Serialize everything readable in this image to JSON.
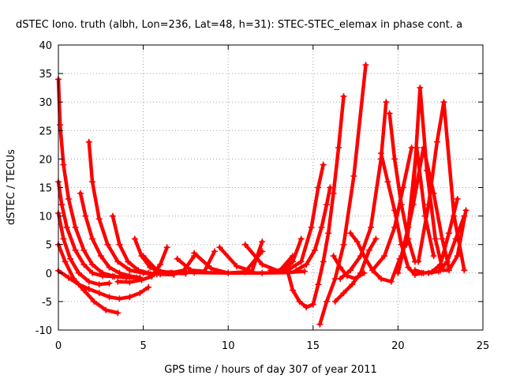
{
  "chart_data": {
    "type": "scatter",
    "title": "dSTEC Iono. truth (albh, Lon=236, Lat=48, h=31): STEC-STEC_elemax in phase cont. a",
    "xlabel": "GPS time / hours of day 307 of year 2011",
    "ylabel": "dSTEC  / TECUs",
    "xlim": [
      0,
      25
    ],
    "ylim": [
      -10,
      40
    ],
    "xticks": [
      "0",
      "5",
      "10",
      "15",
      "20",
      "25"
    ],
    "yticks": [
      "-10",
      "-5",
      "0",
      "5",
      "10",
      "15",
      "20",
      "25",
      "30",
      "35",
      "40"
    ],
    "grid": true,
    "marker": "+",
    "color": "#ff0000",
    "series": [
      {
        "x": [
          0.0,
          0.1,
          0.3,
          0.6,
          1.0,
          1.5,
          2.0,
          2.6,
          3.3,
          4.0,
          4.6
        ],
        "y": [
          34,
          26,
          19,
          13,
          8,
          4,
          1.5,
          0,
          -0.6,
          -0.8,
          -0.8
        ]
      },
      {
        "x": [
          0.0,
          0.2,
          0.5,
          1.0,
          1.5,
          2.0,
          2.6,
          3.2
        ],
        "y": [
          16,
          12,
          8,
          4,
          1.5,
          0,
          -0.5,
          -0.6
        ]
      },
      {
        "x": [
          0.0,
          0.3,
          0.7,
          1.2,
          1.8,
          2.4,
          3.0
        ],
        "y": [
          10.5,
          6,
          2.5,
          0,
          -1.5,
          -2,
          -1.8
        ]
      },
      {
        "x": [
          0.0,
          0.4,
          0.9,
          1.5,
          2.1,
          2.8,
          3.5
        ],
        "y": [
          5,
          2,
          -1,
          -3,
          -5,
          -6.5,
          -7
        ]
      },
      {
        "x": [
          0.0,
          0.6,
          1.2,
          1.8,
          2.4,
          3.0,
          3.6,
          4.2,
          4.8,
          5.3
        ],
        "y": [
          0.4,
          -0.8,
          -2,
          -2.8,
          -3.5,
          -4.2,
          -4.5,
          -4.2,
          -3.5,
          -2.5
        ]
      },
      {
        "x": [
          1.3,
          1.6,
          2.0,
          2.5,
          3.0,
          3.6,
          4.2,
          4.8
        ],
        "y": [
          14,
          10,
          6,
          3,
          1,
          0,
          -0.5,
          -0.8
        ]
      },
      {
        "x": [
          1.8,
          2.0,
          2.4,
          2.9,
          3.5,
          4.2,
          5.0,
          5.8
        ],
        "y": [
          23,
          16,
          9.5,
          5,
          2,
          0.5,
          0,
          -0.2
        ]
      },
      {
        "x": [
          3.2,
          3.6,
          4.1,
          4.7,
          5.3,
          6.0,
          6.8
        ],
        "y": [
          10,
          5,
          2,
          0.5,
          0,
          -0.2,
          -0.3
        ]
      },
      {
        "x": [
          4.5,
          4.9,
          5.4,
          6.0,
          6.7,
          7.5
        ],
        "y": [
          6,
          3,
          1,
          0.2,
          0,
          -0.1
        ]
      },
      {
        "x": [
          3.5,
          4.2,
          4.9,
          5.5,
          6.0,
          6.4
        ],
        "y": [
          -1.5,
          -1.6,
          -1.2,
          -0.6,
          1.5,
          4.5
        ]
      },
      {
        "x": [
          5.0,
          5.8,
          6.6,
          7.4,
          8.0
        ],
        "y": [
          3,
          0.5,
          0,
          0.5,
          3
        ]
      },
      {
        "x": [
          7.0,
          7.8,
          8.6,
          9.2
        ],
        "y": [
          2.5,
          0.5,
          0.3,
          3.8
        ]
      },
      {
        "x": [
          8.0,
          9.0,
          10.0,
          11.0,
          12.0
        ],
        "y": [
          3.5,
          0.8,
          0,
          0.2,
          3.8
        ]
      },
      {
        "x": [
          9.5,
          10.5,
          11.4,
          12.0
        ],
        "y": [
          4.5,
          1.2,
          0.3,
          5.5
        ]
      },
      {
        "x": [
          11.0,
          12.0,
          13.0,
          13.8
        ],
        "y": [
          5,
          1.5,
          0.3,
          3
        ]
      },
      {
        "x": [
          6.0,
          8.0,
          10.0,
          12.0,
          13.5,
          14.5
        ],
        "y": [
          0.2,
          0.1,
          0,
          0,
          0.1,
          0.3
        ]
      },
      {
        "x": [
          12.5,
          13.2,
          13.8,
          14.3
        ],
        "y": [
          0.5,
          0.3,
          2,
          6
        ]
      },
      {
        "x": [
          13.5,
          13.8,
          14.2,
          14.6,
          15.0,
          15.3,
          15.6,
          15.9,
          16.2,
          16.5,
          16.8
        ],
        "y": [
          0.3,
          -3,
          -5,
          -6,
          -5.5,
          -2,
          2,
          7,
          14,
          22,
          31
        ]
      },
      {
        "x": [
          12.5,
          13.5,
          14.3,
          14.9,
          15.3,
          15.6
        ],
        "y": [
          0.5,
          0.5,
          2,
          8,
          15,
          19
        ]
      },
      {
        "x": [
          15.4,
          15.8,
          16.3,
          16.8,
          17.4,
          18.1
        ],
        "y": [
          -9,
          -5,
          -1,
          5,
          17,
          36.5
        ]
      },
      {
        "x": [
          14.0,
          14.6,
          15.1,
          15.5,
          15.8,
          16.0
        ],
        "y": [
          0.5,
          1.5,
          4,
          8,
          12,
          15
        ]
      },
      {
        "x": [
          16.3,
          16.8,
          17.3,
          17.8,
          18.3,
          18.7
        ],
        "y": [
          -5,
          -3.5,
          -2,
          0,
          4,
          6
        ]
      },
      {
        "x": [
          16.6,
          17.2,
          17.8,
          18.4,
          19.0,
          19.3
        ],
        "y": [
          -1,
          0.5,
          3,
          8,
          20,
          30
        ]
      },
      {
        "x": [
          17.2,
          17.6,
          18.0,
          18.5,
          19.0,
          19.6,
          20.1
        ],
        "y": [
          7,
          5.5,
          3,
          0.5,
          -1,
          -1.5,
          2.5
        ]
      },
      {
        "x": [
          16.2,
          16.6,
          17.0,
          17.5,
          18.0
        ],
        "y": [
          3,
          1,
          -0.5,
          -1,
          0
        ]
      },
      {
        "x": [
          18.5,
          19.2,
          19.8,
          20.3,
          20.8
        ],
        "y": [
          0.5,
          3,
          8,
          15,
          22
        ]
      },
      {
        "x": [
          19.0,
          19.4,
          19.8,
          20.2,
          20.6,
          21.0,
          21.4
        ],
        "y": [
          21,
          16,
          11,
          5,
          1,
          -0.3,
          0
        ]
      },
      {
        "x": [
          19.5,
          19.8,
          20.2,
          20.6,
          21.0
        ],
        "y": [
          28,
          20,
          12,
          6,
          2
        ]
      },
      {
        "x": [
          20.5,
          20.9,
          21.3,
          21.7,
          22.2,
          22.6
        ],
        "y": [
          5,
          14,
          32.5,
          18,
          6,
          1
        ]
      },
      {
        "x": [
          20.2,
          20.6,
          21.1,
          21.6,
          22.1
        ],
        "y": [
          3,
          8,
          22,
          10,
          3
        ]
      },
      {
        "x": [
          20.0,
          20.4,
          20.9,
          21.5,
          22.1,
          22.6,
          23.0
        ],
        "y": [
          0,
          5,
          12,
          22,
          14,
          6,
          1
        ]
      },
      {
        "x": [
          21.2,
          21.8,
          22.3,
          22.7,
          23.3,
          23.9
        ],
        "y": [
          2,
          12,
          23,
          30,
          10,
          0.5
        ]
      },
      {
        "x": [
          21.0,
          21.5,
          22.0,
          22.5,
          23.0,
          23.5
        ],
        "y": [
          0.5,
          0,
          0.2,
          1.5,
          7,
          13
        ]
      },
      {
        "x": [
          22.5,
          23.0,
          23.5,
          24.0
        ],
        "y": [
          0.5,
          0.5,
          3,
          11
        ]
      },
      {
        "x": [
          21.8,
          22.4,
          22.9,
          23.4,
          23.9
        ],
        "y": [
          0,
          0.3,
          2,
          6,
          10
        ]
      }
    ]
  }
}
